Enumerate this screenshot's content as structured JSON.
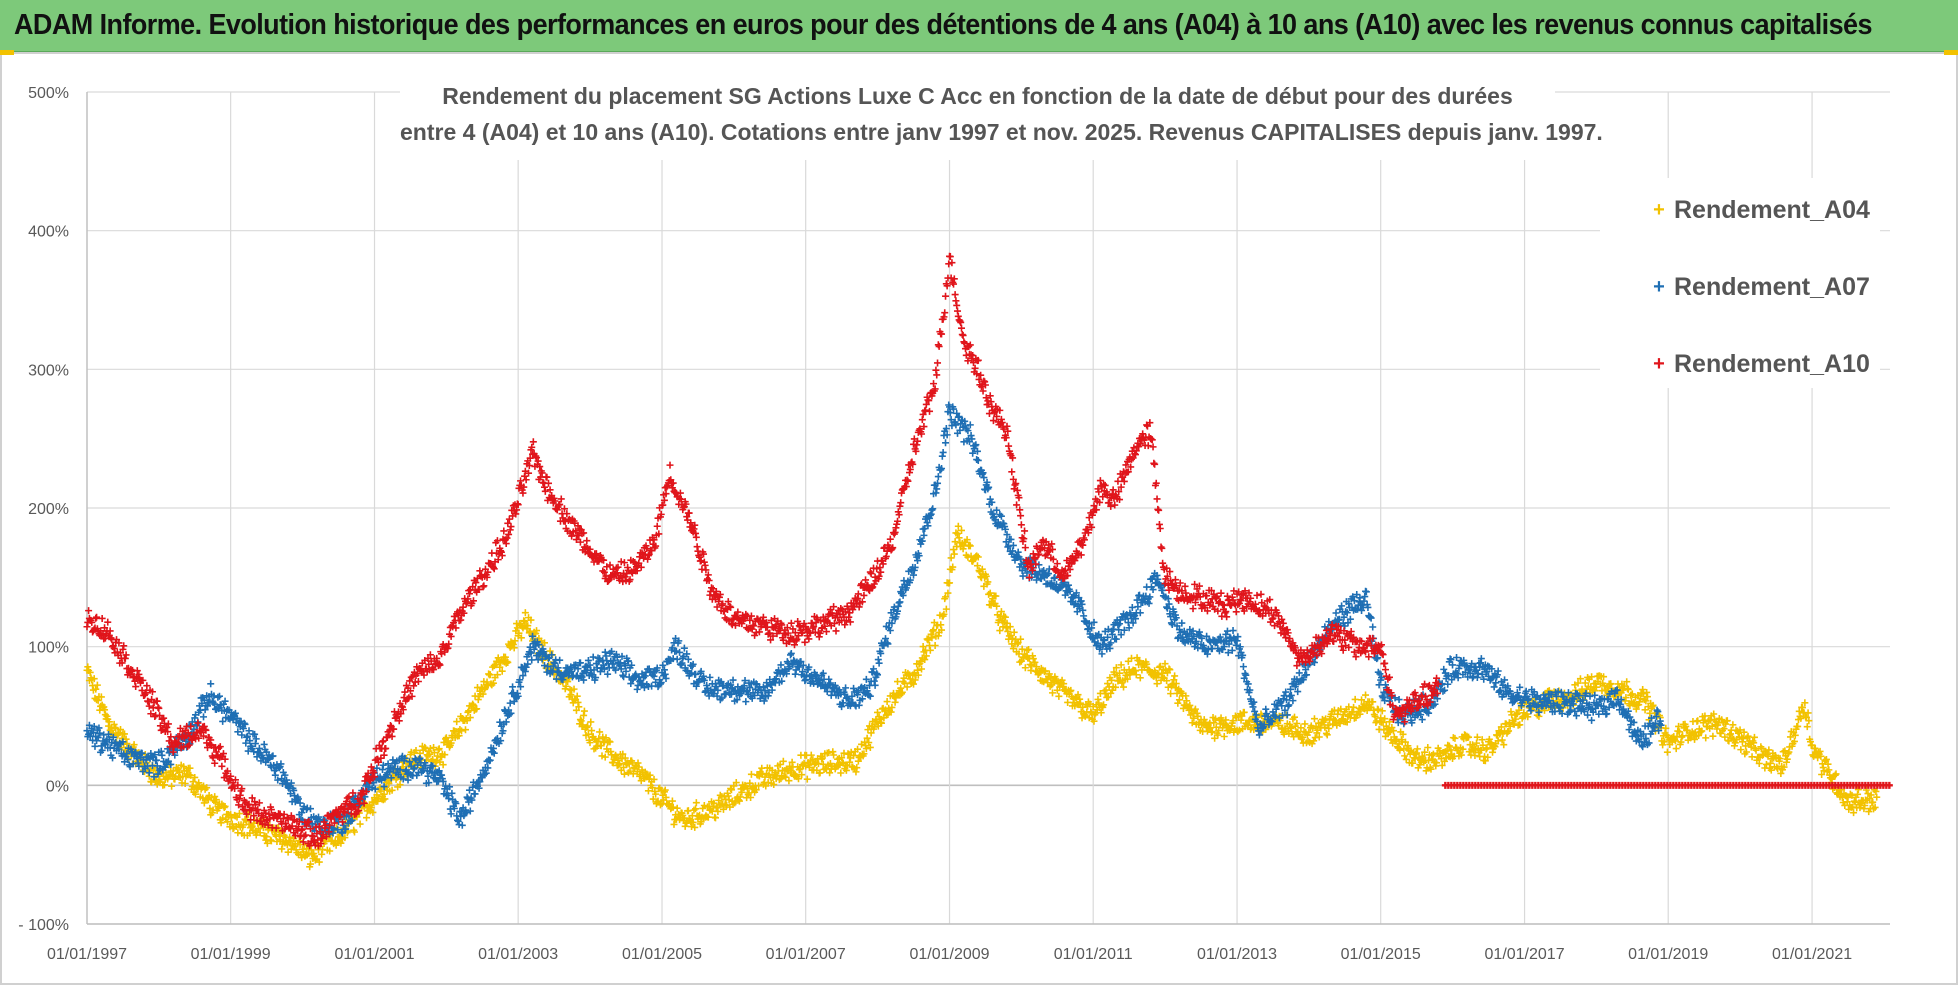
{
  "header": {
    "title": "ADAM Informe. Evolution historique des performances en euros pour des détentions de 4 ans (A04) à 10 ans (A10) avec les revenus connus capitalisés"
  },
  "colors": {
    "banner": "#7dc97a",
    "corner_accent": "#f2c200",
    "grid": "#d9d9d9",
    "zero_line": "#bfbfbf"
  },
  "chart_data": {
    "type": "scatter",
    "title_lines": [
      "Rendement du placement SG Actions Luxe C Acc en fonction de la date de début pour des durées",
      "entre 4 (A04) et 10 ans (A10). Cotations entre janv 1997 et nov. 2025. Revenus CAPITALISES depuis janv. 1997."
    ],
    "x_axis": {
      "type": "date",
      "range": [
        "1997-01-01",
        "2022-02-01"
      ],
      "tick_labels": [
        "01/01/1997",
        "01/01/1999",
        "01/01/2001",
        "01/01/2003",
        "01/01/2005",
        "01/01/2007",
        "01/01/2009",
        "01/01/2011",
        "01/01/2013",
        "01/01/2015",
        "01/01/2017",
        "01/01/2019",
        "01/01/2021"
      ]
    },
    "y_axis": {
      "range": [
        -100,
        500
      ],
      "unit": "%",
      "tick_values": [
        -100,
        0,
        100,
        200,
        300,
        400,
        500
      ],
      "tick_labels": [
        "- 100%",
        "0%",
        "100%",
        "200%",
        "300%",
        "400%",
        "500%"
      ]
    },
    "marker": "+",
    "series": [
      {
        "name": "Rendement_A04",
        "color": "#f2c200",
        "x": [
          1997.0,
          1997.3,
          1997.6,
          1998.0,
          1998.4,
          1998.8,
          1999.3,
          1999.8,
          2000.1,
          2000.5,
          2001.0,
          2001.5,
          2002.0,
          2002.4,
          2002.8,
          2003.1,
          2003.3,
          2003.7,
          2004.0,
          2004.3,
          2004.7,
          2005.0,
          2005.3,
          2005.8,
          2006.3,
          2006.8,
          2007.2,
          2007.7,
          2008.1,
          2008.5,
          2008.9,
          2009.1,
          2009.4,
          2009.7,
          2010.0,
          2010.5,
          2011.0,
          2011.3,
          2011.6,
          2012.0,
          2012.5,
          2013.0,
          2013.5,
          2014.0,
          2014.4,
          2014.8,
          2015.1,
          2015.5,
          2015.9,
          2016.1,
          2016.5,
          2016.9,
          2017.3,
          2017.7,
          2018.0,
          2018.3,
          2018.7,
          2019.0,
          2019.3,
          2019.7,
          2020.1,
          2020.3,
          2020.6,
          2020.9,
          2021.0,
          2021.2,
          2021.5,
          2021.9
        ],
        "y": [
          82,
          45,
          25,
          5,
          8,
          -18,
          -30,
          -40,
          -52,
          -38,
          -10,
          18,
          25,
          60,
          92,
          118,
          100,
          70,
          38,
          22,
          8,
          -10,
          -25,
          -15,
          2,
          12,
          15,
          18,
          55,
          80,
          120,
          180,
          160,
          120,
          95,
          70,
          50,
          75,
          85,
          80,
          42,
          45,
          45,
          38,
          48,
          60,
          40,
          18,
          20,
          30,
          25,
          50,
          60,
          65,
          75,
          70,
          60,
          30,
          40,
          45,
          30,
          20,
          15,
          60,
          28,
          12,
          -12,
          -10
        ]
      },
      {
        "name": "Rendement_A07",
        "color": "#1f6fb4",
        "x": [
          1997.0,
          1997.3,
          1997.6,
          1998.0,
          1998.4,
          1998.7,
          1999.0,
          1999.3,
          1999.7,
          2000.0,
          2000.3,
          2000.6,
          2000.9,
          2001.2,
          2001.6,
          2001.9,
          2002.2,
          2002.6,
          2002.9,
          2003.2,
          2003.5,
          2003.9,
          2004.3,
          2004.7,
          2005.0,
          2005.2,
          2005.6,
          2006.0,
          2006.4,
          2006.8,
          2007.2,
          2007.6,
          2007.9,
          2008.2,
          2008.5,
          2008.8,
          2009.0,
          2009.3,
          2009.6,
          2010.0,
          2010.4,
          2010.8,
          2011.1,
          2011.5,
          2011.9,
          2012.2,
          2012.6,
          2013.0,
          2013.3,
          2013.7,
          2014.0,
          2014.4,
          2014.8,
          2015.0,
          2015.3,
          2015.7,
          2016.0,
          2016.4,
          2016.8,
          2017.2,
          2017.6,
          2018.0,
          2018.3,
          2018.6,
          2018.9
        ],
        "y": [
          38,
          30,
          20,
          15,
          35,
          65,
          50,
          30,
          10,
          -20,
          -30,
          -25,
          0,
          10,
          15,
          5,
          -25,
          20,
          60,
          100,
          85,
          80,
          90,
          75,
          80,
          100,
          70,
          70,
          65,
          90,
          75,
          60,
          70,
          120,
          160,
          210,
          270,
          250,
          200,
          160,
          150,
          130,
          100,
          120,
          150,
          110,
          100,
          105,
          40,
          60,
          90,
          120,
          135,
          70,
          50,
          60,
          85,
          85,
          65,
          60,
          60,
          55,
          65,
          30,
          50
        ]
      },
      {
        "name": "Rendement_A10",
        "color": "#e0151b",
        "x": [
          1997.0,
          1997.3,
          1997.6,
          1997.9,
          1998.2,
          1998.6,
          1998.9,
          1999.2,
          1999.6,
          1999.9,
          2000.2,
          2000.5,
          2000.8,
          2001.0,
          2001.3,
          2001.6,
          2001.9,
          2002.2,
          2002.5,
          2002.8,
          2003.0,
          2003.2,
          2003.4,
          2003.7,
          2004.0,
          2004.3,
          2004.6,
          2004.9,
          2005.1,
          2005.4,
          2005.7,
          2006.0,
          2006.4,
          2006.8,
          2007.2,
          2007.6,
          2007.9,
          2008.2,
          2008.5,
          2008.8,
          2009.0,
          2009.2,
          2009.4,
          2009.6,
          2009.8,
          2010.1,
          2010.3,
          2010.6,
          2010.9,
          2011.1,
          2011.3,
          2011.6,
          2011.8,
          2012.0,
          2012.2,
          2012.5,
          2012.8,
          2013.1,
          2013.5,
          2013.9,
          2014.3,
          2014.7,
          2015.0,
          2015.2,
          2015.5,
          2015.8
        ],
        "y": [
          120,
          110,
          85,
          60,
          30,
          40,
          15,
          -15,
          -25,
          -30,
          -38,
          -20,
          -10,
          15,
          50,
          80,
          90,
          125,
          150,
          175,
          205,
          240,
          215,
          190,
          170,
          150,
          155,
          175,
          225,
          190,
          140,
          120,
          115,
          110,
          115,
          125,
          145,
          175,
          240,
          290,
          380,
          320,
          300,
          270,
          255,
          155,
          175,
          150,
          180,
          215,
          205,
          245,
          255,
          150,
          140,
          135,
          130,
          135,
          125,
          90,
          110,
          100,
          100,
          50,
          60,
          70
        ]
      }
    ],
    "series_flat": {
      "name": "Rendement_A10",
      "x_range": [
        2015.9,
        2022.1
      ],
      "value": 0
    },
    "legend": {
      "position": "top-right",
      "entries": [
        "Rendement_A04",
        "Rendement_A07",
        "Rendement_A10"
      ]
    }
  }
}
